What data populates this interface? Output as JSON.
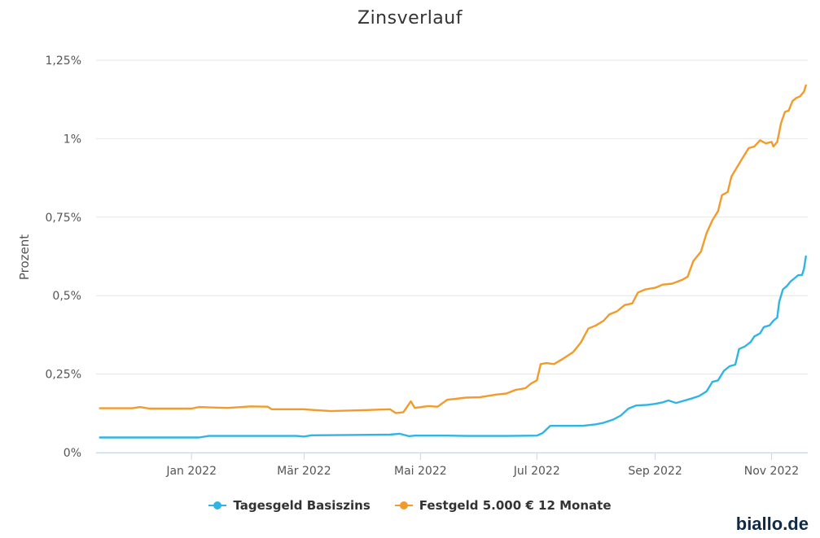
{
  "chart_data": {
    "type": "line",
    "title": "Zinsverlauf",
    "ylabel": "Prozent",
    "xlabel": "",
    "yticks": [
      "0%",
      "0,25%",
      "0,5%",
      "0,75%",
      "1%",
      "1,25%"
    ],
    "ylim": [
      0,
      1.25
    ],
    "xticks": [
      {
        "label": "Jan 2022",
        "date": "2022-01-01"
      },
      {
        "label": "Mär 2022",
        "date": "2022-03-01"
      },
      {
        "label": "Mai 2022",
        "date": "2022-05-01"
      },
      {
        "label": "Jul 2022",
        "date": "2022-07-01"
      },
      {
        "label": "Sep 2022",
        "date": "2022-09-01"
      },
      {
        "label": "Nov 2022",
        "date": "2022-11-01"
      }
    ],
    "xlim": [
      "2021-11-12",
      "2022-11-20"
    ],
    "grid": true,
    "legend": "bottom-center",
    "series": [
      {
        "name": "Tagesgeld Basiszins",
        "color": "#2fb5e3",
        "points": [
          [
            "2021-11-14",
            0.048
          ],
          [
            "2021-12-01",
            0.048
          ],
          [
            "2021-12-20",
            0.048
          ],
          [
            "2022-01-05",
            0.048
          ],
          [
            "2022-01-10",
            0.053
          ],
          [
            "2022-02-01",
            0.053
          ],
          [
            "2022-02-25",
            0.053
          ],
          [
            "2022-03-01",
            0.051
          ],
          [
            "2022-03-05",
            0.055
          ],
          [
            "2022-03-25",
            0.056
          ],
          [
            "2022-04-15",
            0.057
          ],
          [
            "2022-04-20",
            0.06
          ],
          [
            "2022-04-25",
            0.052
          ],
          [
            "2022-04-28",
            0.054
          ],
          [
            "2022-05-15",
            0.054
          ],
          [
            "2022-05-25",
            0.053
          ],
          [
            "2022-06-15",
            0.053
          ],
          [
            "2022-07-01",
            0.054
          ],
          [
            "2022-07-04",
            0.062
          ],
          [
            "2022-07-08",
            0.085
          ],
          [
            "2022-07-25",
            0.085
          ],
          [
            "2022-08-01",
            0.09
          ],
          [
            "2022-08-05",
            0.095
          ],
          [
            "2022-08-10",
            0.105
          ],
          [
            "2022-08-14",
            0.118
          ],
          [
            "2022-08-18",
            0.14
          ],
          [
            "2022-08-22",
            0.15
          ],
          [
            "2022-08-28",
            0.152
          ],
          [
            "2022-09-01",
            0.155
          ],
          [
            "2022-09-05",
            0.16
          ],
          [
            "2022-09-08",
            0.166
          ],
          [
            "2022-09-12",
            0.158
          ],
          [
            "2022-09-16",
            0.165
          ],
          [
            "2022-09-20",
            0.172
          ],
          [
            "2022-09-24",
            0.18
          ],
          [
            "2022-09-28",
            0.195
          ],
          [
            "2022-10-01",
            0.225
          ],
          [
            "2022-10-04",
            0.23
          ],
          [
            "2022-10-07",
            0.26
          ],
          [
            "2022-10-10",
            0.275
          ],
          [
            "2022-10-13",
            0.28
          ],
          [
            "2022-10-15",
            0.33
          ],
          [
            "2022-10-18",
            0.338
          ],
          [
            "2022-10-21",
            0.352
          ],
          [
            "2022-10-23",
            0.37
          ],
          [
            "2022-10-26",
            0.38
          ],
          [
            "2022-10-28",
            0.4
          ],
          [
            "2022-10-31",
            0.405
          ],
          [
            "2022-11-02",
            0.42
          ],
          [
            "2022-11-04",
            0.43
          ],
          [
            "2022-11-05",
            0.48
          ],
          [
            "2022-11-07",
            0.52
          ],
          [
            "2022-11-09",
            0.53
          ],
          [
            "2022-11-11",
            0.545
          ],
          [
            "2022-11-13",
            0.555
          ],
          [
            "2022-11-15",
            0.565
          ],
          [
            "2022-11-17",
            0.566
          ],
          [
            "2022-11-18",
            0.585
          ],
          [
            "2022-11-19",
            0.625
          ]
        ]
      },
      {
        "name": "Festgeld 5.000 € 12 Monate",
        "color": "#f29b2a",
        "points": [
          [
            "2021-11-14",
            0.141
          ],
          [
            "2021-12-01",
            0.141
          ],
          [
            "2021-12-05",
            0.145
          ],
          [
            "2021-12-10",
            0.14
          ],
          [
            "2022-01-01",
            0.14
          ],
          [
            "2022-01-05",
            0.145
          ],
          [
            "2022-01-20",
            0.142
          ],
          [
            "2022-02-01",
            0.147
          ],
          [
            "2022-02-10",
            0.146
          ],
          [
            "2022-02-12",
            0.138
          ],
          [
            "2022-03-01",
            0.138
          ],
          [
            "2022-03-05",
            0.136
          ],
          [
            "2022-03-15",
            0.132
          ],
          [
            "2022-04-01",
            0.135
          ],
          [
            "2022-04-15",
            0.138
          ],
          [
            "2022-04-18",
            0.126
          ],
          [
            "2022-04-22",
            0.128
          ],
          [
            "2022-04-26",
            0.163
          ],
          [
            "2022-04-28",
            0.142
          ],
          [
            "2022-05-05",
            0.148
          ],
          [
            "2022-05-10",
            0.146
          ],
          [
            "2022-05-15",
            0.168
          ],
          [
            "2022-05-25",
            0.175
          ],
          [
            "2022-06-01",
            0.176
          ],
          [
            "2022-06-10",
            0.185
          ],
          [
            "2022-06-15",
            0.188
          ],
          [
            "2022-06-20",
            0.2
          ],
          [
            "2022-06-25",
            0.205
          ],
          [
            "2022-06-28",
            0.22
          ],
          [
            "2022-07-01",
            0.23
          ],
          [
            "2022-07-03",
            0.282
          ],
          [
            "2022-07-06",
            0.285
          ],
          [
            "2022-07-10",
            0.282
          ],
          [
            "2022-07-15",
            0.3
          ],
          [
            "2022-07-20",
            0.32
          ],
          [
            "2022-07-24",
            0.35
          ],
          [
            "2022-07-28",
            0.395
          ],
          [
            "2022-08-01",
            0.405
          ],
          [
            "2022-08-05",
            0.42
          ],
          [
            "2022-08-08",
            0.44
          ],
          [
            "2022-08-12",
            0.45
          ],
          [
            "2022-08-16",
            0.47
          ],
          [
            "2022-08-20",
            0.475
          ],
          [
            "2022-08-23",
            0.51
          ],
          [
            "2022-08-27",
            0.52
          ],
          [
            "2022-09-01",
            0.525
          ],
          [
            "2022-09-05",
            0.535
          ],
          [
            "2022-09-10",
            0.538
          ],
          [
            "2022-09-15",
            0.55
          ],
          [
            "2022-09-18",
            0.56
          ],
          [
            "2022-09-21",
            0.61
          ],
          [
            "2022-09-25",
            0.64
          ],
          [
            "2022-09-28",
            0.7
          ],
          [
            "2022-10-01",
            0.74
          ],
          [
            "2022-10-04",
            0.77
          ],
          [
            "2022-10-06",
            0.82
          ],
          [
            "2022-10-09",
            0.83
          ],
          [
            "2022-10-11",
            0.88
          ],
          [
            "2022-10-14",
            0.91
          ],
          [
            "2022-10-17",
            0.94
          ],
          [
            "2022-10-20",
            0.97
          ],
          [
            "2022-10-23",
            0.975
          ],
          [
            "2022-10-26",
            0.995
          ],
          [
            "2022-10-29",
            0.985
          ],
          [
            "2022-11-01",
            0.99
          ],
          [
            "2022-11-02",
            0.975
          ],
          [
            "2022-11-04",
            0.99
          ],
          [
            "2022-11-06",
            1.05
          ],
          [
            "2022-11-08",
            1.085
          ],
          [
            "2022-11-10",
            1.09
          ],
          [
            "2022-11-12",
            1.12
          ],
          [
            "2022-11-14",
            1.13
          ],
          [
            "2022-11-16",
            1.135
          ],
          [
            "2022-11-18",
            1.15
          ],
          [
            "2022-11-19",
            1.17
          ]
        ]
      }
    ]
  },
  "brand": "biallo.de"
}
